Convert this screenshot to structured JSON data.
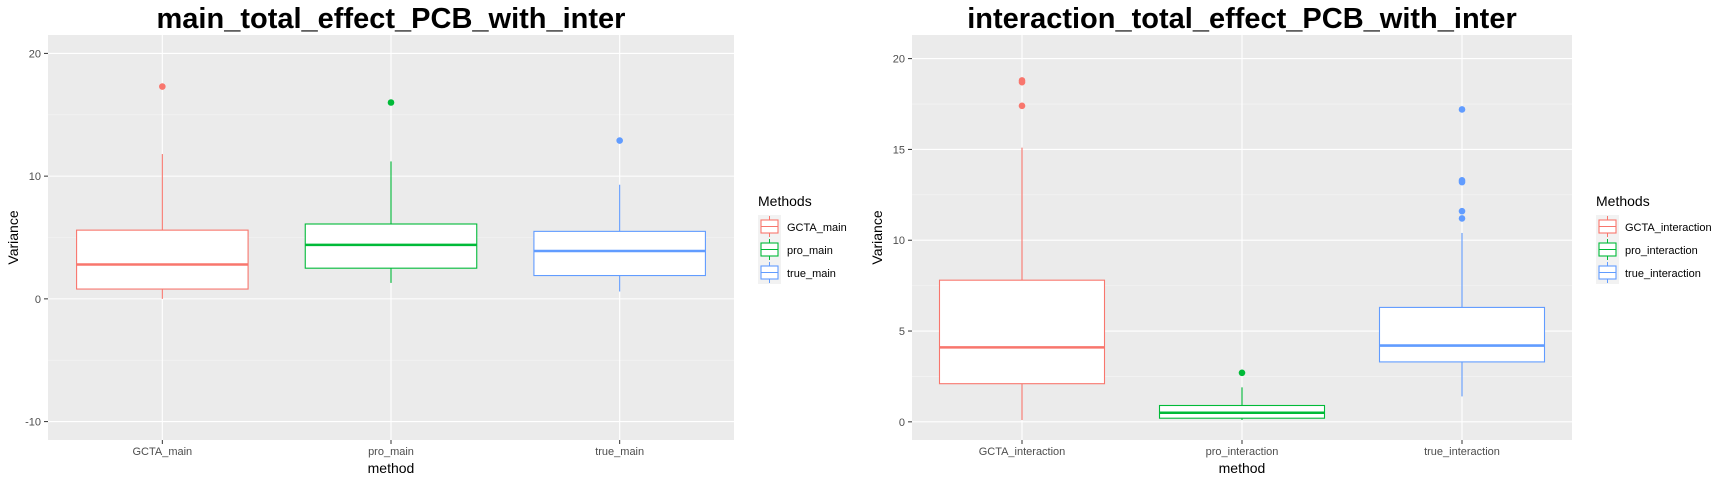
{
  "chart_data": [
    {
      "type": "box",
      "title": "main_total_effect_PCB_with_inter",
      "xlabel": "method",
      "ylabel": "Variance",
      "ylim": [
        -11.5,
        21.5
      ],
      "yticks": [
        -10,
        0,
        10,
        20
      ],
      "grid": true,
      "legend_title": "Methods",
      "legend_position": "right",
      "categories": [
        "GCTA_main",
        "pro_main",
        "true_main"
      ],
      "series": [
        {
          "name": "GCTA_main",
          "color": "#F8766D",
          "min": 0.0,
          "q1": 0.8,
          "median": 2.8,
          "q3": 5.6,
          "max": 11.8,
          "outliers": [
            17.3
          ]
        },
        {
          "name": "pro_main",
          "color": "#00BA38",
          "min": 1.3,
          "q1": 2.5,
          "median": 4.4,
          "q3": 6.1,
          "max": 11.2,
          "outliers": [
            16.0
          ]
        },
        {
          "name": "true_main",
          "color": "#619CFF",
          "min": 0.6,
          "q1": 1.9,
          "median": 3.9,
          "q3": 5.5,
          "max": 9.3,
          "outliers": [
            12.9
          ]
        }
      ]
    },
    {
      "type": "box",
      "title": "interaction_total_effect_PCB_with_inter",
      "xlabel": "method",
      "ylabel": "Variance",
      "ylim": [
        -1.0,
        21.3
      ],
      "yticks": [
        0,
        5,
        10,
        15,
        20
      ],
      "grid": true,
      "legend_title": "Methods",
      "legend_position": "right",
      "categories": [
        "GCTA_interaction",
        "pro_interaction",
        "true_interaction"
      ],
      "series": [
        {
          "name": "GCTA_interaction",
          "color": "#F8766D",
          "min": 0.1,
          "q1": 2.1,
          "median": 4.1,
          "q3": 7.8,
          "max": 15.1,
          "outliers": [
            17.4,
            18.7,
            18.8
          ]
        },
        {
          "name": "pro_interaction",
          "color": "#00BA38",
          "min": 0.1,
          "q1": 0.2,
          "median": 0.5,
          "q3": 0.9,
          "max": 1.9,
          "outliers": [
            2.7
          ]
        },
        {
          "name": "true_interaction",
          "color": "#619CFF",
          "min": 1.4,
          "q1": 3.3,
          "median": 4.2,
          "q3": 6.3,
          "max": 10.4,
          "outliers": [
            11.2,
            11.6,
            13.2,
            13.3,
            17.2
          ]
        }
      ]
    }
  ]
}
